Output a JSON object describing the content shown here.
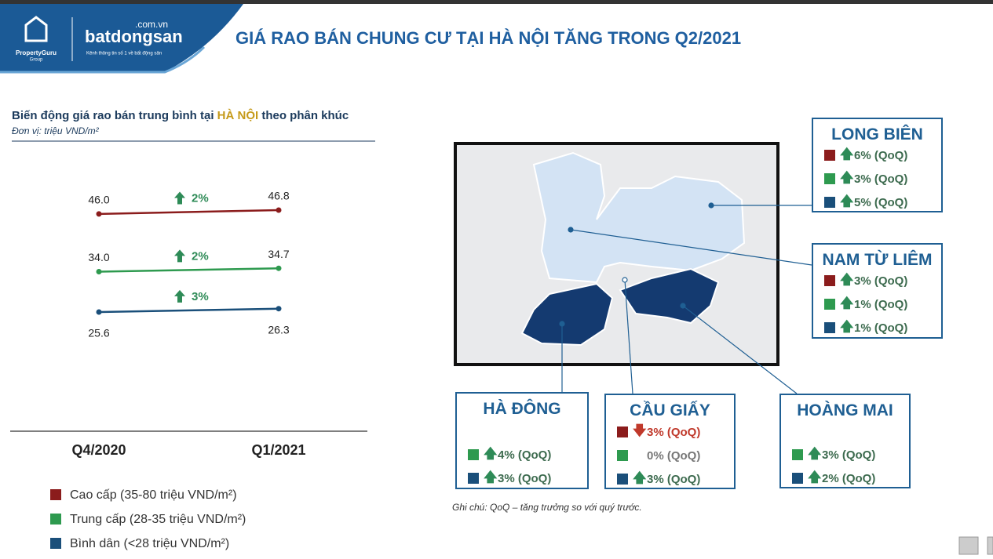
{
  "header": {
    "title": "GIÁ RAO BÁN CHUNG CƯ TẠI HÀ NỘI TĂNG TRONG Q2/2021",
    "logo_left": "PropertyGuru",
    "logo_left_sub": "Group",
    "logo_right": "batdongsan",
    "logo_right_domain": ".com.vn",
    "logo_right_tagline": "Kênh thông tin số 1 về bất động sản"
  },
  "chart_data": {
    "type": "line",
    "title_parts": [
      "Biến động giá rao bán trung bình tại ",
      "HÀ NỘI",
      " theo phân khúc"
    ],
    "subtitle": "Đơn vị: triệu VND/m²",
    "categories": [
      "Q4/2020",
      "Q1/2021"
    ],
    "series": [
      {
        "name": "Cao cấp (35-80 triệu VND/m²)",
        "color": "#8b1c1c",
        "values": [
          46.0,
          46.8
        ],
        "value_labels": [
          "46.0",
          "46.8"
        ],
        "change": "2%"
      },
      {
        "name": "Trung cấp (28-35 triệu VND/m²)",
        "color": "#2e9a4f",
        "values": [
          34.0,
          34.7
        ],
        "value_labels": [
          "34.0",
          "34.7"
        ],
        "change": "2%"
      },
      {
        "name": "Bình dân (<28 triệu VND/m²)",
        "color": "#1a4f7a",
        "values": [
          25.6,
          26.3
        ],
        "value_labels": [
          "25.6",
          "26.3"
        ],
        "change": "3%"
      }
    ]
  },
  "map": {
    "note": "Ghi chú: QoQ – tăng trưởng so với quý trước.",
    "districts": [
      {
        "name": "LONG BIÊN",
        "items": [
          {
            "color": "#8b1c1c",
            "direction": "up",
            "text": "6% (QoQ)"
          },
          {
            "color": "#2e9a4f",
            "direction": "up",
            "text": "3% (QoQ)"
          },
          {
            "color": "#1a4f7a",
            "direction": "up",
            "text": "5% (QoQ)"
          }
        ]
      },
      {
        "name": "NAM TỪ LIÊM",
        "items": [
          {
            "color": "#8b1c1c",
            "direction": "up",
            "text": "3% (QoQ)"
          },
          {
            "color": "#2e9a4f",
            "direction": "up",
            "text": "1% (QoQ)"
          },
          {
            "color": "#1a4f7a",
            "direction": "up",
            "text": "1% (QoQ)"
          }
        ]
      },
      {
        "name": "HÀ ĐÔNG",
        "items": [
          {
            "color": "#2e9a4f",
            "direction": "up",
            "text": "4% (QoQ)"
          },
          {
            "color": "#1a4f7a",
            "direction": "up",
            "text": "3% (QoQ)"
          }
        ]
      },
      {
        "name": "CẦU GIẤY",
        "items": [
          {
            "color": "#8b1c1c",
            "direction": "down",
            "text": "3% (QoQ)"
          },
          {
            "color": "#2e9a4f",
            "direction": "none",
            "text": "0% (QoQ)"
          },
          {
            "color": "#1a4f7a",
            "direction": "up",
            "text": "3% (QoQ)"
          }
        ]
      },
      {
        "name": "HOÀNG MAI",
        "items": [
          {
            "color": "#2e9a4f",
            "direction": "up",
            "text": "3% (QoQ)"
          },
          {
            "color": "#1a4f7a",
            "direction": "up",
            "text": "2% (QoQ)"
          }
        ]
      }
    ]
  }
}
